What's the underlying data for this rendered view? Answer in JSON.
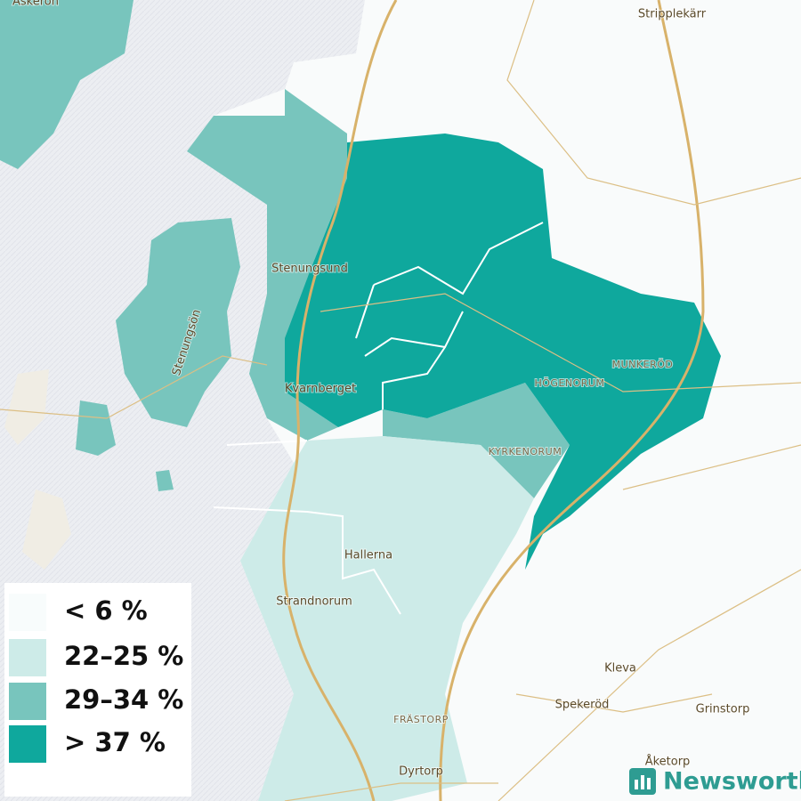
{
  "map": {
    "places": [
      "Askerön",
      "Stripplekärr",
      "Stenungsön",
      "Stenungsund",
      "Kvarnberget",
      "MUNKERÖD",
      "HÖGENORUM",
      "KYRKENORUM",
      "Hallerna",
      "Strandnorum",
      "Kleva",
      "Spekeröd",
      "Grinstorp",
      "FRÄSTORP",
      "Dyrtorp",
      "Åketorp"
    ],
    "legend": [
      {
        "label": "< 6 %",
        "color": "#f8fcfc"
      },
      {
        "label": "22–25 %",
        "color": "#cdebe8"
      },
      {
        "label": "29–34 %",
        "color": "#78c5bd"
      },
      {
        "label": "> 37 %",
        "color": "#0fa89d"
      }
    ]
  },
  "logo": "Newsworthy"
}
